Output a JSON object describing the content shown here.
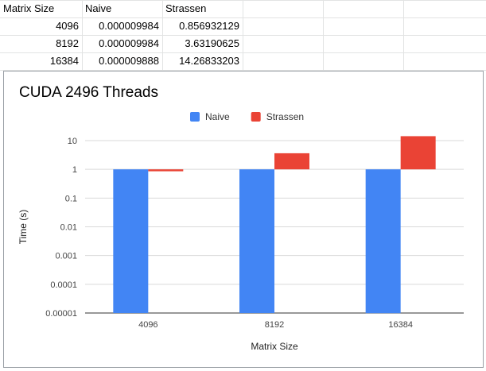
{
  "sheet": {
    "columns": [
      "Matrix Size",
      "Naive",
      "Strassen"
    ],
    "rows": [
      [
        "4096",
        "0.000009984",
        "0.856932129"
      ],
      [
        "8192",
        "0.000009984",
        "3.63190625"
      ],
      [
        "16384",
        "0.000009888",
        "14.26833203"
      ]
    ]
  },
  "chart_data": {
    "type": "bar",
    "title": "CUDA 2496 Threads",
    "xlabel": "Matrix Size",
    "ylabel": "Time (s)",
    "categories": [
      "4096",
      "8192",
      "16384"
    ],
    "series": [
      {
        "name": "Naive",
        "color": "#4285f4",
        "values": [
          9.984e-06,
          9.984e-06,
          9.888e-06
        ]
      },
      {
        "name": "Strassen",
        "color": "#ea4335",
        "values": [
          0.856932129,
          3.63190625,
          14.26833203
        ]
      }
    ],
    "y_scale": "log",
    "baseline": 1,
    "ylim": [
      1e-05,
      10
    ],
    "y_ticks": [
      "10",
      "1",
      "0.1",
      "0.01",
      "0.001",
      "0.0001",
      "0.00001"
    ],
    "legend_position": "top",
    "grid": "horizontal"
  }
}
